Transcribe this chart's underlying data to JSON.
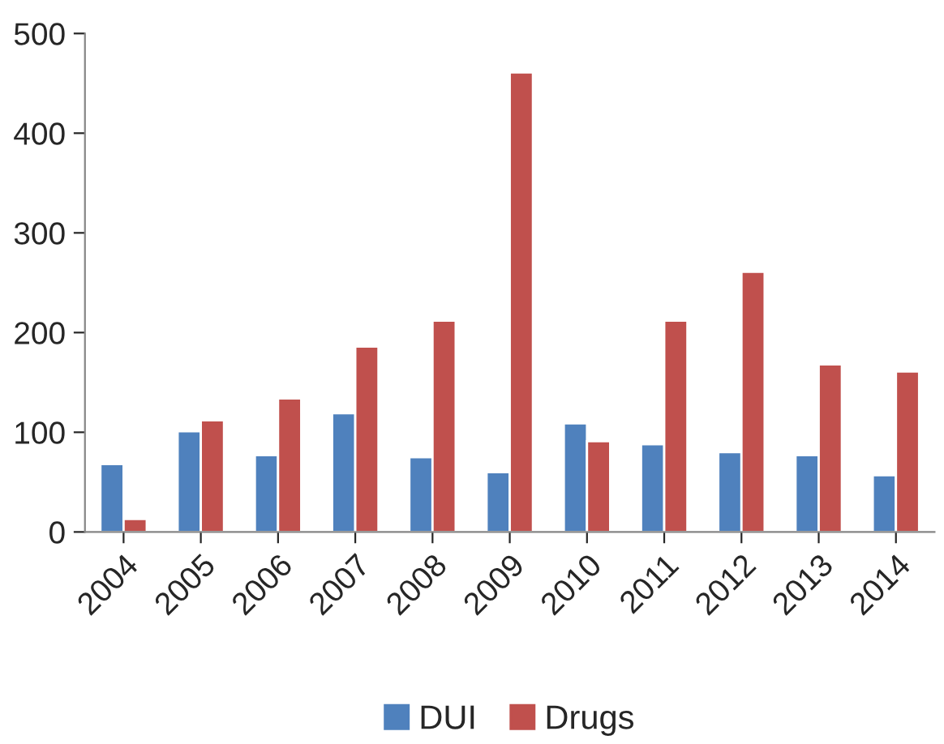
{
  "chart_data": {
    "type": "bar",
    "categories": [
      "2004",
      "2005",
      "2006",
      "2007",
      "2008",
      "2009",
      "2010",
      "2011",
      "2012",
      "2013",
      "2014"
    ],
    "series": [
      {
        "name": "DUI",
        "color": "#4f81bd",
        "values": [
          68,
          101,
          77,
          119,
          75,
          60,
          109,
          88,
          80,
          77,
          57
        ]
      },
      {
        "name": "Drugs",
        "color": "#c0504d",
        "values": [
          13,
          112,
          134,
          186,
          212,
          461,
          91,
          212,
          261,
          168,
          161
        ]
      }
    ],
    "ylim": [
      0,
      500
    ],
    "yticks": [
      0,
      100,
      200,
      300,
      400,
      500
    ],
    "grid": false,
    "legend": "bottom"
  }
}
